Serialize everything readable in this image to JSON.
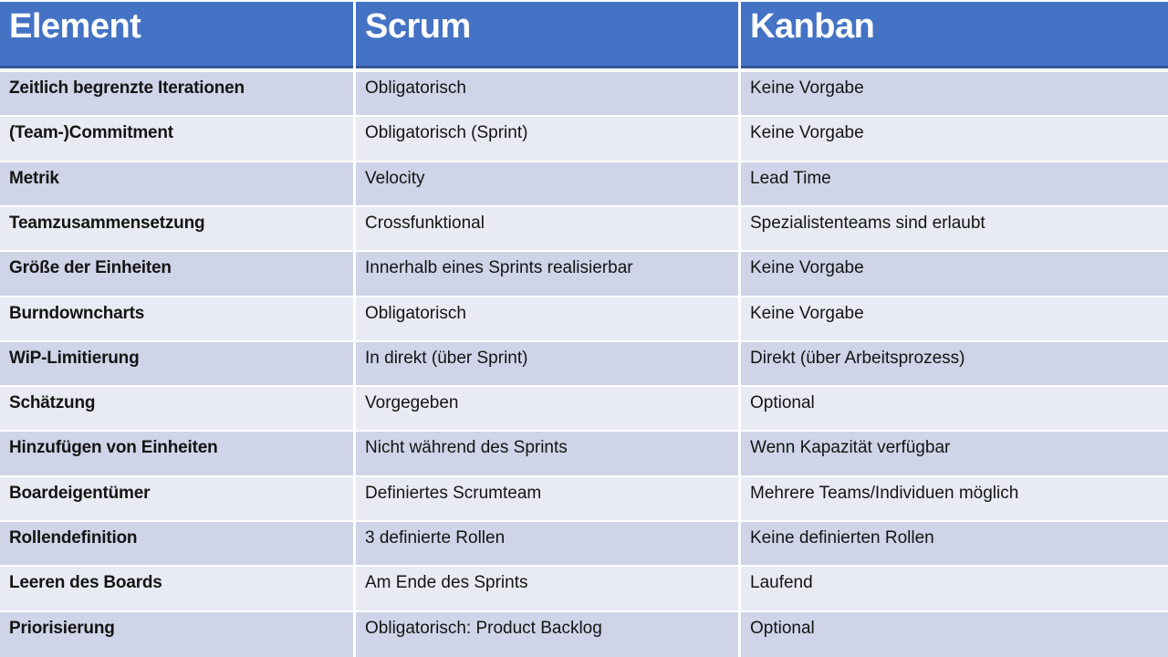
{
  "table": {
    "columns": [
      {
        "label": "Element"
      },
      {
        "label": "Scrum"
      },
      {
        "label": "Kanban"
      }
    ],
    "rows": [
      {
        "element": "Zeitlich begrenzte Iterationen",
        "scrum": "Obligatorisch",
        "kanban": "Keine Vorgabe"
      },
      {
        "element": "(Team-)Commitment",
        "scrum": "Obligatorisch (Sprint)",
        "kanban": "Keine Vorgabe"
      },
      {
        "element": "Metrik",
        "scrum": "Velocity",
        "kanban": "Lead Time"
      },
      {
        "element": "Teamzusammensetzung",
        "scrum": "Crossfunktional",
        "kanban": "Spezialistenteams sind erlaubt"
      },
      {
        "element": "Größe der Einheiten",
        "scrum": "Innerhalb eines Sprints realisierbar",
        "kanban": "Keine Vorgabe"
      },
      {
        "element": "Burndowncharts",
        "scrum": "Obligatorisch",
        "kanban": "Keine Vorgabe"
      },
      {
        "element": "WiP-Limitierung",
        "scrum": "In direkt (über Sprint)",
        "kanban": "Direkt (über Arbeitsprozess)"
      },
      {
        "element": "Schätzung",
        "scrum": "Vorgegeben",
        "kanban": "Optional"
      },
      {
        "element": "Hinzufügen von Einheiten",
        "scrum": "Nicht während des Sprints",
        "kanban": "Wenn Kapazität verfügbar"
      },
      {
        "element": "Boardeigentümer",
        "scrum": "Definiertes Scrumteam",
        "kanban": "Mehrere Teams/Individuen möglich"
      },
      {
        "element": "Rollendefinition",
        "scrum": "3 definierte Rollen",
        "kanban": "Keine definierten Rollen"
      },
      {
        "element": "Leeren des Boards",
        "scrum": "Am Ende des Sprints",
        "kanban": "Laufend"
      },
      {
        "element": "Priorisierung",
        "scrum": "Obligatorisch: Product Backlog",
        "kanban": "Optional"
      }
    ]
  },
  "theme": {
    "header_bg": "#4472c4",
    "header_text": "#ffffff",
    "header_edge": "#33589d",
    "row_dark": "#cfd4e8",
    "row_light": "#e9ebf4",
    "separator": "#ffffff",
    "body_text": "#141414"
  }
}
